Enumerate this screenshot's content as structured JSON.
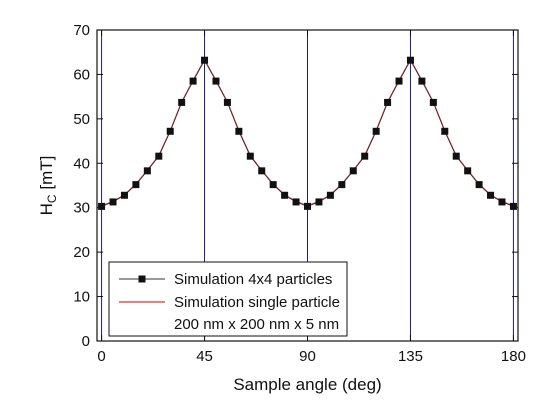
{
  "chart_data": {
    "type": "line",
    "title": "",
    "xlabel": "Sample angle (deg)",
    "ylabel_main": "H",
    "ylabel_sub": "C",
    "ylabel_unit": "[mT]",
    "xlim": [
      -2,
      182
    ],
    "ylim": [
      0,
      70
    ],
    "x_ticks": [
      0,
      45,
      90,
      135,
      180
    ],
    "y_ticks": [
      0,
      10,
      20,
      30,
      40,
      50,
      60,
      70
    ],
    "grid": false,
    "vertical_lines": [
      0,
      45,
      90,
      135,
      180
    ],
    "legend": {
      "position": "bottom-left",
      "entries": [
        "Simulation 4x4 particles",
        "Simulation single particle",
        "200 nm x 200 nm x 5 nm"
      ]
    },
    "colors": {
      "markers": "#111111",
      "marker_line": "#333333",
      "single_line": "#e03030",
      "vlines": "#1a1a8c",
      "axes": "#111111"
    },
    "series": [
      {
        "name": "Simulation 4x4 particles",
        "x": [
          0,
          5,
          10,
          15,
          20,
          25,
          30,
          35,
          40,
          45,
          50,
          55,
          60,
          65,
          70,
          75,
          80,
          85,
          90,
          95,
          100,
          105,
          110,
          115,
          120,
          125,
          130,
          135,
          140,
          145,
          150,
          155,
          160,
          165,
          170,
          175,
          180
        ],
        "values": [
          30.3,
          31.3,
          32.8,
          35.2,
          38.3,
          41.6,
          47.2,
          53.7,
          58.5,
          63.2,
          58.5,
          53.7,
          47.2,
          41.6,
          38.3,
          35.2,
          32.8,
          31.3,
          30.3,
          31.3,
          32.8,
          35.2,
          38.3,
          41.6,
          47.2,
          53.7,
          58.5,
          63.2,
          58.5,
          53.7,
          47.2,
          41.6,
          38.3,
          35.2,
          32.8,
          31.3,
          30.3
        ]
      },
      {
        "name": "Simulation single particle",
        "x": [
          0,
          5,
          10,
          15,
          20,
          25,
          30,
          35,
          40,
          45,
          50,
          55,
          60,
          65,
          70,
          75,
          80,
          85,
          90,
          95,
          100,
          105,
          110,
          115,
          120,
          125,
          130,
          135,
          140,
          145,
          150,
          155,
          160,
          165,
          170,
          175,
          180
        ],
        "values": [
          30.4,
          31.4,
          32.9,
          35.3,
          38.4,
          41.7,
          47.3,
          53.8,
          58.6,
          63.3,
          58.6,
          53.8,
          47.3,
          41.7,
          38.4,
          35.3,
          32.9,
          31.4,
          30.4,
          31.4,
          32.9,
          35.3,
          38.4,
          41.7,
          47.3,
          53.8,
          58.6,
          63.3,
          58.6,
          53.8,
          47.3,
          41.7,
          38.4,
          35.3,
          32.9,
          31.4,
          30.4
        ]
      }
    ]
  }
}
